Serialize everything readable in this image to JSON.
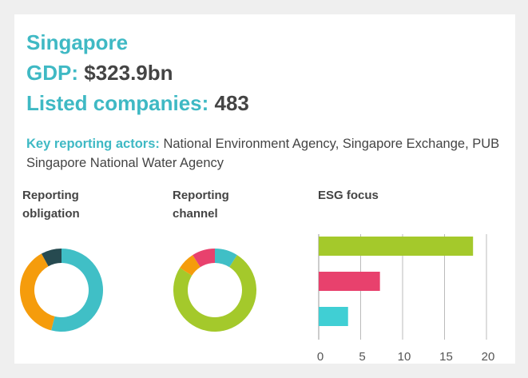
{
  "header": {
    "title": "Singapore",
    "gdp_label": "GDP:",
    "gdp_value": "$323.9bn",
    "listed_label": "Listed companies:",
    "listed_value": "483"
  },
  "key_actors": {
    "label": "Key reporting actors:",
    "text": "National Environment Agency, Singapore Exchange, PUB Singapore National Water Agency"
  },
  "chart_data": [
    {
      "type": "donut",
      "title": "Reporting obligation",
      "values": [
        54,
        38,
        8
      ],
      "colors": [
        "#40bfc6",
        "#f59c0c",
        "#264a50"
      ]
    },
    {
      "type": "donut",
      "title": "Reporting channel",
      "values": [
        9,
        75,
        7,
        9
      ],
      "colors": [
        "#40bfc6",
        "#a4c92b",
        "#f59c0c",
        "#e8416d"
      ]
    },
    {
      "type": "bar",
      "orientation": "horizontal",
      "title": "ESG focus",
      "categories": [
        null,
        null,
        null
      ],
      "values": [
        18.4,
        7.3,
        3.5
      ],
      "colors": [
        "#a4c92b",
        "#e8416d",
        "#40cfd4"
      ],
      "xlim": [
        0,
        20
      ],
      "xticks": [
        0,
        5,
        10,
        15,
        20
      ],
      "grid": true
    }
  ]
}
